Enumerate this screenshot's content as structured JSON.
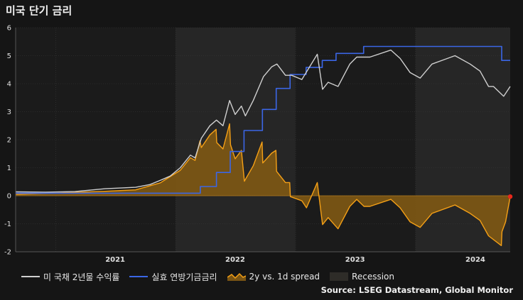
{
  "title": "미국 단기 금리",
  "source": "Source: LSEG Datastream, Global Monitor",
  "colors": {
    "background": "#151515",
    "plot_bg": "#1b1b1b",
    "recession": "#262626",
    "yield": "#cfcfcf",
    "policy": "#3b66e6",
    "spread_line": "#f5a016",
    "spread_fill": "#7a5514",
    "marker": "#e8281c"
  },
  "chart_data": {
    "type": "line",
    "x_range": [
      "2020-09-01",
      "2024-10-15"
    ],
    "ylim": [
      -2,
      6
    ],
    "y_ticks": [
      -2,
      -1,
      0,
      1,
      2,
      3,
      4,
      5,
      6
    ],
    "x_ticks": [
      {
        "label": "2021",
        "date": "2021-07-01"
      },
      {
        "label": "2022",
        "date": "2022-07-01"
      },
      {
        "label": "2023",
        "date": "2023-07-01"
      },
      {
        "label": "2024",
        "date": "2024-07-01"
      }
    ],
    "recession_bands": [
      {
        "start": "2022-01-01",
        "end": "2022-12-31"
      },
      {
        "start": "2024-01-01",
        "end": "2024-10-15"
      }
    ],
    "legend": [
      {
        "label": "미 국채 2년물 수익률",
        "kind": "line",
        "color": "#cfcfcf"
      },
      {
        "label": "실효 연방기금금리",
        "kind": "line",
        "color": "#3b66e6"
      },
      {
        "label": "2y vs. 1d spread",
        "kind": "area",
        "color": "#f5a016"
      },
      {
        "label": "Recession",
        "kind": "box",
        "color": "#2e2c28"
      }
    ],
    "series": [
      {
        "name": "미 국채 2년물 수익률",
        "points": [
          [
            "2020-09-01",
            0.14
          ],
          [
            "2020-12-01",
            0.13
          ],
          [
            "2021-03-01",
            0.15
          ],
          [
            "2021-06-01",
            0.25
          ],
          [
            "2021-09-01",
            0.3
          ],
          [
            "2021-10-15",
            0.4
          ],
          [
            "2021-11-15",
            0.55
          ],
          [
            "2021-12-15",
            0.7
          ],
          [
            "2022-01-15",
            1.0
          ],
          [
            "2022-02-15",
            1.45
          ],
          [
            "2022-03-01",
            1.35
          ],
          [
            "2022-03-20",
            2.05
          ],
          [
            "2022-04-15",
            2.5
          ],
          [
            "2022-05-05",
            2.7
          ],
          [
            "2022-05-25",
            2.5
          ],
          [
            "2022-06-14",
            3.4
          ],
          [
            "2022-07-01",
            2.9
          ],
          [
            "2022-07-20",
            3.2
          ],
          [
            "2022-08-01",
            2.85
          ],
          [
            "2022-08-25",
            3.4
          ],
          [
            "2022-09-25",
            4.25
          ],
          [
            "2022-10-20",
            4.6
          ],
          [
            "2022-11-05",
            4.7
          ],
          [
            "2022-12-01",
            4.3
          ],
          [
            "2022-12-20",
            4.3
          ],
          [
            "2023-01-20",
            4.15
          ],
          [
            "2023-03-08",
            5.05
          ],
          [
            "2023-03-24",
            3.8
          ],
          [
            "2023-04-10",
            4.05
          ],
          [
            "2023-05-10",
            3.9
          ],
          [
            "2023-06-15",
            4.7
          ],
          [
            "2023-07-06",
            4.95
          ],
          [
            "2023-08-15",
            4.95
          ],
          [
            "2023-10-18",
            5.2
          ],
          [
            "2023-11-15",
            4.9
          ],
          [
            "2023-12-15",
            4.4
          ],
          [
            "2024-01-15",
            4.2
          ],
          [
            "2024-02-20",
            4.7
          ],
          [
            "2024-04-30",
            5.0
          ],
          [
            "2024-06-15",
            4.7
          ],
          [
            "2024-07-15",
            4.45
          ],
          [
            "2024-08-10",
            3.9
          ],
          [
            "2024-08-25",
            3.9
          ],
          [
            "2024-09-25",
            3.55
          ],
          [
            "2024-10-15",
            3.9
          ]
        ]
      },
      {
        "name": "실효 연방기금금리",
        "points": [
          [
            "2020-09-01",
            0.09
          ],
          [
            "2022-03-17",
            0.09
          ],
          [
            "2022-03-17",
            0.33
          ],
          [
            "2022-05-05",
            0.33
          ],
          [
            "2022-05-05",
            0.83
          ],
          [
            "2022-06-16",
            0.83
          ],
          [
            "2022-06-16",
            1.58
          ],
          [
            "2022-07-28",
            1.58
          ],
          [
            "2022-07-28",
            2.33
          ],
          [
            "2022-09-22",
            2.33
          ],
          [
            "2022-09-22",
            3.08
          ],
          [
            "2022-11-03",
            3.08
          ],
          [
            "2022-11-03",
            3.83
          ],
          [
            "2022-12-15",
            3.83
          ],
          [
            "2022-12-15",
            4.33
          ],
          [
            "2023-02-02",
            4.33
          ],
          [
            "2023-02-02",
            4.58
          ],
          [
            "2023-03-23",
            4.58
          ],
          [
            "2023-03-23",
            4.83
          ],
          [
            "2023-05-04",
            4.83
          ],
          [
            "2023-05-04",
            5.08
          ],
          [
            "2023-07-27",
            5.08
          ],
          [
            "2023-07-27",
            5.33
          ],
          [
            "2024-09-19",
            5.33
          ],
          [
            "2024-09-19",
            4.83
          ],
          [
            "2024-10-15",
            4.83
          ]
        ]
      },
      {
        "name": "2y vs. 1d spread",
        "points": [
          [
            "2020-09-01",
            0.05
          ],
          [
            "2021-06-01",
            0.16
          ],
          [
            "2021-09-01",
            0.21
          ],
          [
            "2021-11-15",
            0.46
          ],
          [
            "2022-01-15",
            0.91
          ],
          [
            "2022-02-15",
            1.36
          ],
          [
            "2022-03-01",
            1.26
          ],
          [
            "2022-03-16",
            1.96
          ],
          [
            "2022-03-20",
            1.72
          ],
          [
            "2022-04-15",
            2.17
          ],
          [
            "2022-05-04",
            2.37
          ],
          [
            "2022-05-06",
            1.9
          ],
          [
            "2022-05-25",
            1.67
          ],
          [
            "2022-06-14",
            2.57
          ],
          [
            "2022-06-17",
            1.82
          ],
          [
            "2022-07-01",
            1.32
          ],
          [
            "2022-07-20",
            1.62
          ],
          [
            "2022-07-29",
            0.52
          ],
          [
            "2022-08-25",
            1.07
          ],
          [
            "2022-09-21",
            1.92
          ],
          [
            "2022-09-23",
            1.17
          ],
          [
            "2022-10-20",
            1.52
          ],
          [
            "2022-11-02",
            1.62
          ],
          [
            "2022-11-04",
            0.87
          ],
          [
            "2022-12-01",
            0.47
          ],
          [
            "2022-12-14",
            0.47
          ],
          [
            "2022-12-16",
            -0.03
          ],
          [
            "2023-01-20",
            -0.18
          ],
          [
            "2023-02-03",
            -0.43
          ],
          [
            "2023-03-08",
            0.47
          ],
          [
            "2023-03-24",
            -1.03
          ],
          [
            "2023-04-10",
            -0.78
          ],
          [
            "2023-05-10",
            -1.18
          ],
          [
            "2023-06-15",
            -0.38
          ],
          [
            "2023-07-06",
            -0.13
          ],
          [
            "2023-07-28",
            -0.38
          ],
          [
            "2023-08-15",
            -0.38
          ],
          [
            "2023-10-18",
            -0.13
          ],
          [
            "2023-11-15",
            -0.43
          ],
          [
            "2023-12-15",
            -0.93
          ],
          [
            "2024-01-15",
            -1.13
          ],
          [
            "2024-02-20",
            -0.63
          ],
          [
            "2024-04-30",
            -0.33
          ],
          [
            "2024-06-15",
            -0.63
          ],
          [
            "2024-07-15",
            -0.88
          ],
          [
            "2024-08-10",
            -1.43
          ],
          [
            "2024-09-18",
            -1.78
          ],
          [
            "2024-09-20",
            -1.28
          ],
          [
            "2024-10-01",
            -0.93
          ],
          [
            "2024-10-15",
            -0.03
          ]
        ]
      }
    ]
  }
}
